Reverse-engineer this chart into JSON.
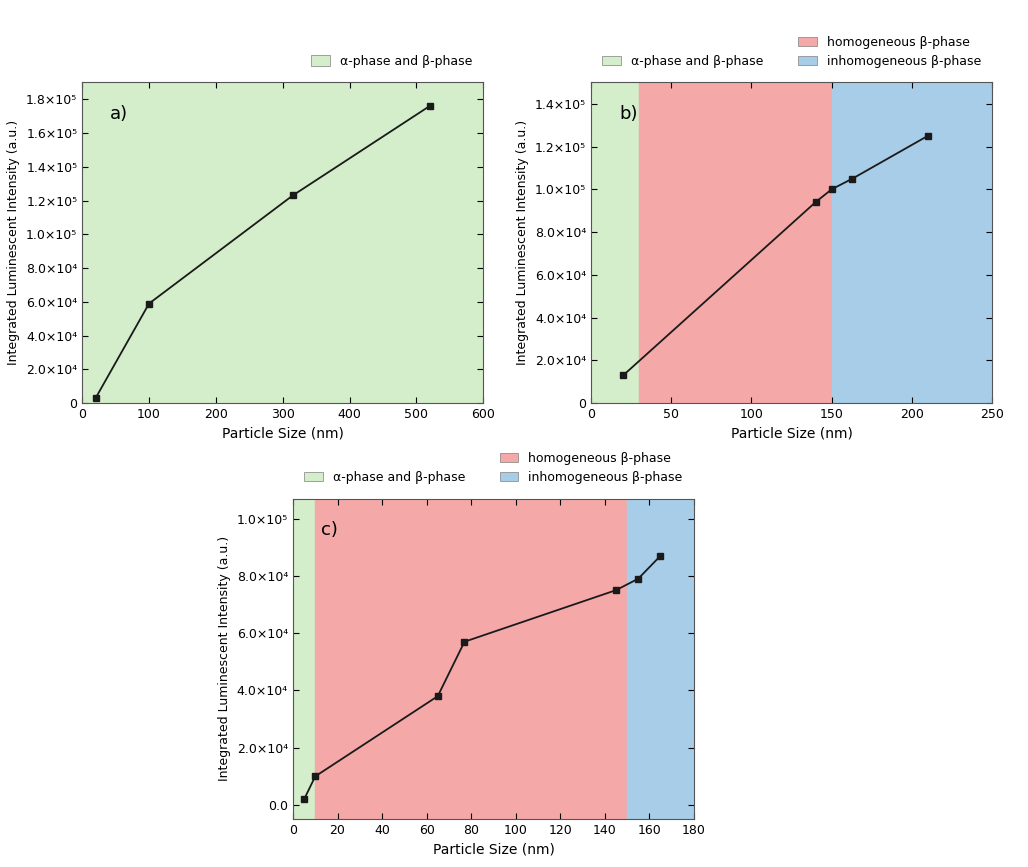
{
  "panel_a": {
    "x": [
      20,
      100,
      315,
      520
    ],
    "y": [
      3000,
      59000,
      123000,
      176000
    ],
    "xlim": [
      0,
      600
    ],
    "ylim": [
      0,
      190000
    ],
    "yticks": [
      0,
      20000,
      40000,
      60000,
      80000,
      100000,
      120000,
      140000,
      160000,
      180000
    ],
    "ytick_labels": [
      "0",
      "2.0×10⁴",
      "4.0×10⁴",
      "6.0×10⁴",
      "8.0×10⁴",
      "1.0×10⁵",
      "1.2×10⁵",
      "1.4×10⁵",
      "1.6×10⁵",
      "1.8×10⁵"
    ],
    "xticks": [
      0,
      100,
      200,
      300,
      400,
      500,
      600
    ],
    "label": "a)",
    "bg_regions": [
      {
        "xmin": 0,
        "xmax": 600,
        "color": "#d4edca"
      }
    ],
    "legend_items": [
      {
        "label": "α-phase and β-phase",
        "color": "#d4edca"
      }
    ]
  },
  "panel_b": {
    "x": [
      20,
      140,
      150,
      163,
      210
    ],
    "y": [
      13000,
      94000,
      100000,
      105000,
      125000
    ],
    "xlim": [
      0,
      250
    ],
    "ylim": [
      0,
      150000
    ],
    "yticks": [
      0,
      20000,
      40000,
      60000,
      80000,
      100000,
      120000,
      140000
    ],
    "ytick_labels": [
      "0",
      "2.0×10⁴",
      "4.0×10⁴",
      "6.0×10⁴",
      "8.0×10⁴",
      "1.0×10⁵",
      "1.2×10⁵",
      "1.4×10⁵"
    ],
    "xticks": [
      0,
      50,
      100,
      150,
      200,
      250
    ],
    "label": "b)",
    "bg_regions": [
      {
        "xmin": 0,
        "xmax": 30,
        "color": "#d4edca"
      },
      {
        "xmin": 30,
        "xmax": 150,
        "color": "#f4a9a8"
      },
      {
        "xmin": 150,
        "xmax": 250,
        "color": "#a8cde8"
      }
    ],
    "legend_items": [
      {
        "label": "α-phase and β-phase",
        "color": "#d4edca"
      },
      {
        "label": "homogeneous β-phase",
        "color": "#f4a9a8"
      },
      {
        "label": "inhomogeneous β-phase",
        "color": "#a8cde8"
      }
    ]
  },
  "panel_c": {
    "x": [
      5,
      10,
      65,
      77,
      145,
      155,
      165
    ],
    "y": [
      2000,
      10000,
      38000,
      57000,
      75000,
      79000,
      87000
    ],
    "xlim": [
      0,
      180
    ],
    "ylim": [
      -5000,
      107000
    ],
    "yticks": [
      0,
      20000,
      40000,
      60000,
      80000,
      100000
    ],
    "ytick_labels": [
      "0.0",
      "2.0×10⁴",
      "4.0×10⁴",
      "6.0×10⁴",
      "8.0×10⁴",
      "1.0×10⁵"
    ],
    "xticks": [
      0,
      20,
      40,
      60,
      80,
      100,
      120,
      140,
      160,
      180
    ],
    "label": "c)",
    "bg_regions": [
      {
        "xmin": 0,
        "xmax": 10,
        "color": "#d4edca"
      },
      {
        "xmin": 10,
        "xmax": 150,
        "color": "#f4a9a8"
      },
      {
        "xmin": 150,
        "xmax": 180,
        "color": "#a8cde8"
      }
    ],
    "legend_items": [
      {
        "label": "α-phase and β-phase",
        "color": "#d4edca"
      },
      {
        "label": "homogeneous β-phase",
        "color": "#f4a9a8"
      },
      {
        "label": "inhomogeneous β-phase",
        "color": "#a8cde8"
      }
    ]
  },
  "ylabel": "Integrated Luminescent Intensity (a.u.)",
  "xlabel": "Particle Size (nm)",
  "line_color": "#1a1a1a",
  "marker": "s",
  "marker_size": 5,
  "marker_color": "#1a1a1a",
  "line_width": 1.3,
  "figure_bg": "#ffffff"
}
